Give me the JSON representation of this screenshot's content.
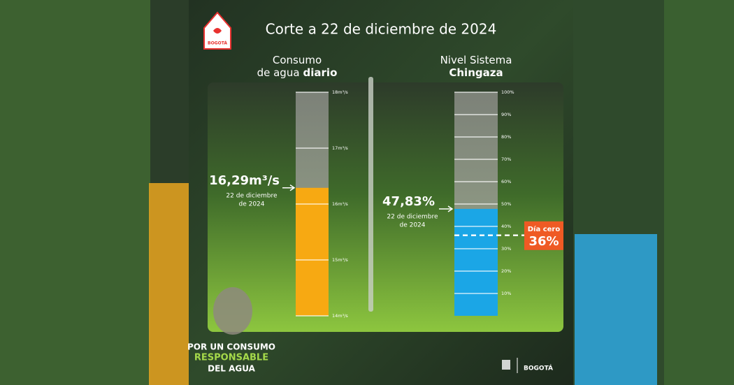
{
  "header": {
    "title": "Corte a 22 de diciembre de 2024",
    "logo_text": "BOGOTÁ"
  },
  "chart_data": [
    {
      "type": "tube",
      "title": [
        "Consumo",
        "de agua"
      ],
      "title_bold": "diario",
      "ylim": [
        14,
        18
      ],
      "yticks": [
        {
          "value": 14,
          "label": "14m³/s"
        },
        {
          "value": 15,
          "label": "15m³/s"
        },
        {
          "value": 16,
          "label": "16m³/s"
        },
        {
          "value": 17,
          "label": "17m³/s"
        },
        {
          "value": 18,
          "label": "18m³/s"
        }
      ],
      "values": [
        16.29
      ],
      "value_labels": [
        "16,29m³/s"
      ],
      "date_label": [
        "22 de diciembre",
        "de 2024"
      ],
      "color": "#f7a912",
      "grid": true
    },
    {
      "type": "tube",
      "title": [
        "Nivel Sistema"
      ],
      "title_bold": "Chingaza",
      "ylim": [
        0,
        100
      ],
      "yticks": [
        {
          "value": 10,
          "label": "10%"
        },
        {
          "value": 20,
          "label": "20%"
        },
        {
          "value": 30,
          "label": "30%"
        },
        {
          "value": 40,
          "label": "40%"
        },
        {
          "value": 50,
          "label": "50%"
        },
        {
          "value": 60,
          "label": "60%"
        },
        {
          "value": 70,
          "label": "70%"
        },
        {
          "value": 80,
          "label": "80%"
        },
        {
          "value": 90,
          "label": "90%"
        },
        {
          "value": 100,
          "label": "100%"
        }
      ],
      "values": [
        47.83
      ],
      "value_labels": [
        "47,83%"
      ],
      "date_label": [
        "22 de diciembre",
        "de 2024"
      ],
      "color": "#1ba6e6",
      "grid": true,
      "threshold": {
        "label": "Día cero",
        "value": 36,
        "value_label": "36%",
        "color": "#ef5a24"
      }
    }
  ],
  "footer": {
    "slogan": [
      "POR UN CONSUMO",
      "RESPONSABLE",
      "DEL AGUA"
    ],
    "logo_text": "BOGOTÁ"
  }
}
